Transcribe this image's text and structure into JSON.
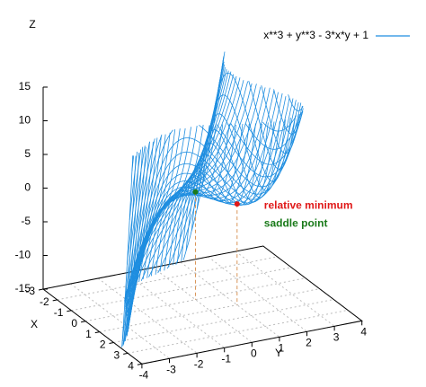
{
  "chart_data": {
    "type": "surface",
    "xlabel": "X",
    "ylabel": "Y",
    "zlabel": "Z",
    "xlim": [
      -3,
      4
    ],
    "ylim": [
      -4,
      4
    ],
    "zlim": [
      -15,
      15
    ],
    "xticks": [
      -3,
      -2,
      -1,
      0,
      1,
      2,
      3,
      4
    ],
    "yticks": [
      -4,
      -3,
      -2,
      -1,
      0,
      1,
      2,
      3,
      4
    ],
    "zticks": [
      -15,
      -10,
      -5,
      0,
      5,
      10,
      15
    ],
    "grid": true,
    "legend": "top-right",
    "series": [
      {
        "name": "x**3 + y**3 - 3*x*y + 1",
        "color": "#1f8ee0"
      }
    ],
    "points": [
      {
        "label": "relative minimum",
        "x": 1,
        "y": 1,
        "z": 0,
        "color": "#e01818"
      },
      {
        "label": "saddle point",
        "x": 0,
        "y": 0,
        "z": 1,
        "color": "#1a7a1a"
      }
    ]
  }
}
